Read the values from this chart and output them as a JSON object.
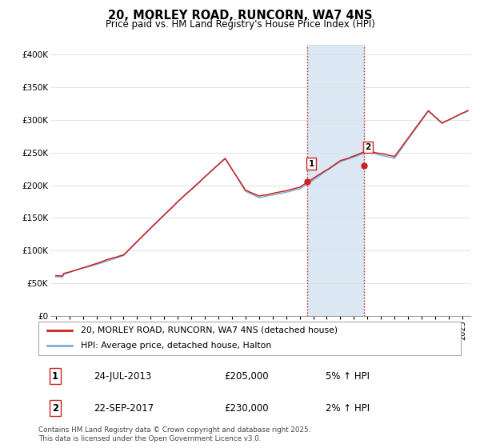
{
  "title": "20, MORLEY ROAD, RUNCORN, WA7 4NS",
  "subtitle": "Price paid vs. HM Land Registry's House Price Index (HPI)",
  "ylabel_ticks": [
    "£0",
    "£50K",
    "£100K",
    "£150K",
    "£200K",
    "£250K",
    "£300K",
    "£350K",
    "£400K"
  ],
  "ytick_values": [
    0,
    50000,
    100000,
    150000,
    200000,
    250000,
    300000,
    350000,
    400000
  ],
  "ylim": [
    0,
    415000
  ],
  "xlim_start": 1994.6,
  "xlim_end": 2025.6,
  "hpi_color": "#7ab0d4",
  "price_color": "#cc2222",
  "marker1_date": 2013.56,
  "marker1_price": 205000,
  "marker2_date": 2017.73,
  "marker2_price": 230000,
  "shade_x1": 2013.56,
  "shade_x2": 2017.73,
  "legend_line1": "20, MORLEY ROAD, RUNCORN, WA7 4NS (detached house)",
  "legend_line2": "HPI: Average price, detached house, Halton",
  "table_row1": [
    "1",
    "24-JUL-2013",
    "£205,000",
    "5% ↑ HPI"
  ],
  "table_row2": [
    "2",
    "22-SEP-2017",
    "£230,000",
    "2% ↑ HPI"
  ],
  "footnote": "Contains HM Land Registry data © Crown copyright and database right 2025.\nThis data is licensed under the Open Government Licence v3.0.",
  "background_color": "#ffffff",
  "grid_color": "#dddddd"
}
